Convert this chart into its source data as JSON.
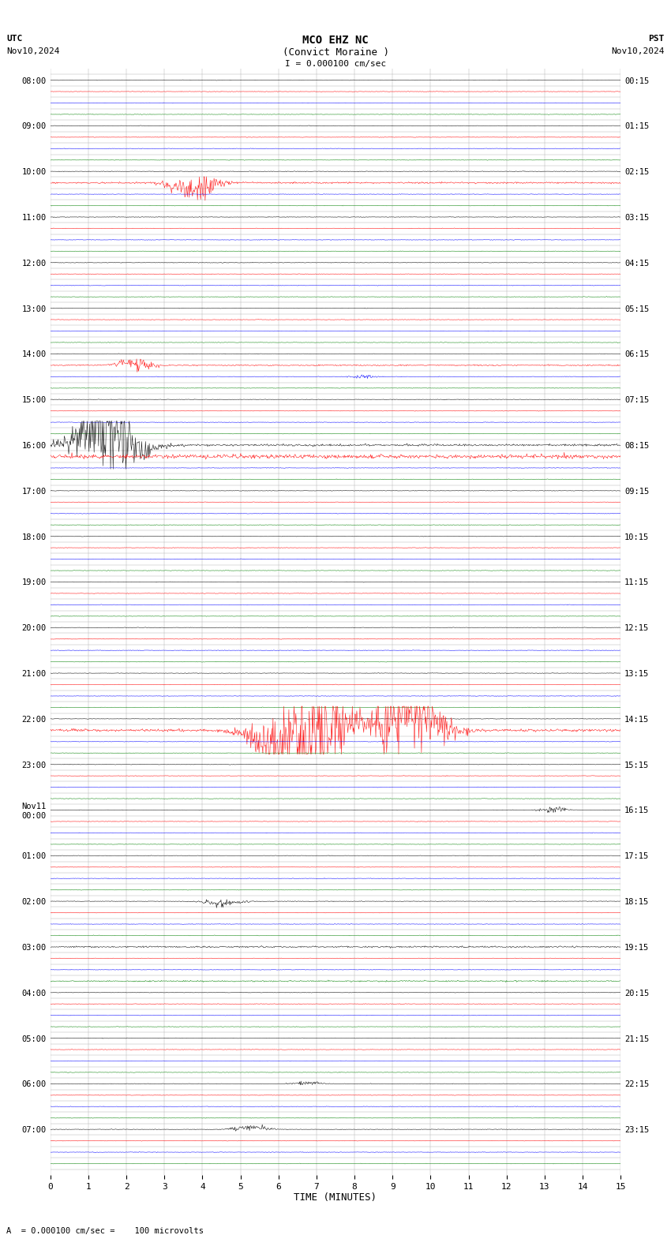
{
  "title_line1": "MCO EHZ NC",
  "title_line2": "(Convict Moraine )",
  "title_line3": "I = 0.000100 cm/sec",
  "top_left_label1": "UTC",
  "top_left_label2": "Nov10,2024",
  "top_right_label1": "PST",
  "top_right_label2": "Nov10,2024",
  "bottom_label": "A  = 0.000100 cm/sec =    100 microvolts",
  "xlabel": "TIME (MINUTES)",
  "utc_labels": [
    "08:00",
    "",
    "",
    "",
    "09:00",
    "",
    "",
    "",
    "10:00",
    "",
    "",
    "",
    "11:00",
    "",
    "",
    "",
    "12:00",
    "",
    "",
    "",
    "13:00",
    "",
    "",
    "",
    "14:00",
    "",
    "",
    "",
    "15:00",
    "",
    "",
    "",
    "16:00",
    "",
    "",
    "",
    "17:00",
    "",
    "",
    "",
    "18:00",
    "",
    "",
    "",
    "19:00",
    "",
    "",
    "",
    "20:00",
    "",
    "",
    "",
    "21:00",
    "",
    "",
    "",
    "22:00",
    "",
    "",
    "",
    "23:00",
    "",
    "",
    "",
    "Nov11\n00:00",
    "",
    "",
    "",
    "01:00",
    "",
    "",
    "",
    "02:00",
    "",
    "",
    "",
    "03:00",
    "",
    "",
    "",
    "04:00",
    "",
    "",
    "",
    "05:00",
    "",
    "",
    "",
    "06:00",
    "",
    "",
    "",
    "07:00",
    "",
    "",
    ""
  ],
  "pst_labels": [
    "00:15",
    "",
    "",
    "",
    "01:15",
    "",
    "",
    "",
    "02:15",
    "",
    "",
    "",
    "03:15",
    "",
    "",
    "",
    "04:15",
    "",
    "",
    "",
    "05:15",
    "",
    "",
    "",
    "06:15",
    "",
    "",
    "",
    "07:15",
    "",
    "",
    "",
    "08:15",
    "",
    "",
    "",
    "09:15",
    "",
    "",
    "",
    "10:15",
    "",
    "",
    "",
    "11:15",
    "",
    "",
    "",
    "12:15",
    "",
    "",
    "",
    "13:15",
    "",
    "",
    "",
    "14:15",
    "",
    "",
    "",
    "15:15",
    "",
    "",
    "",
    "16:15",
    "",
    "",
    "",
    "17:15",
    "",
    "",
    "",
    "18:15",
    "",
    "",
    "",
    "19:15",
    "",
    "",
    "",
    "20:15",
    "",
    "",
    "",
    "21:15",
    "",
    "",
    "",
    "22:15",
    "",
    "",
    "",
    "23:15",
    "",
    "",
    ""
  ],
  "colors": [
    "black",
    "red",
    "blue",
    "green"
  ],
  "num_rows": 96,
  "samples_per_row": 900,
  "xmin": 0,
  "xmax": 15,
  "noise_base": 0.03,
  "bg_color": "white",
  "grid_color": "#aaaaaa",
  "amplitude_scale": 0.35
}
